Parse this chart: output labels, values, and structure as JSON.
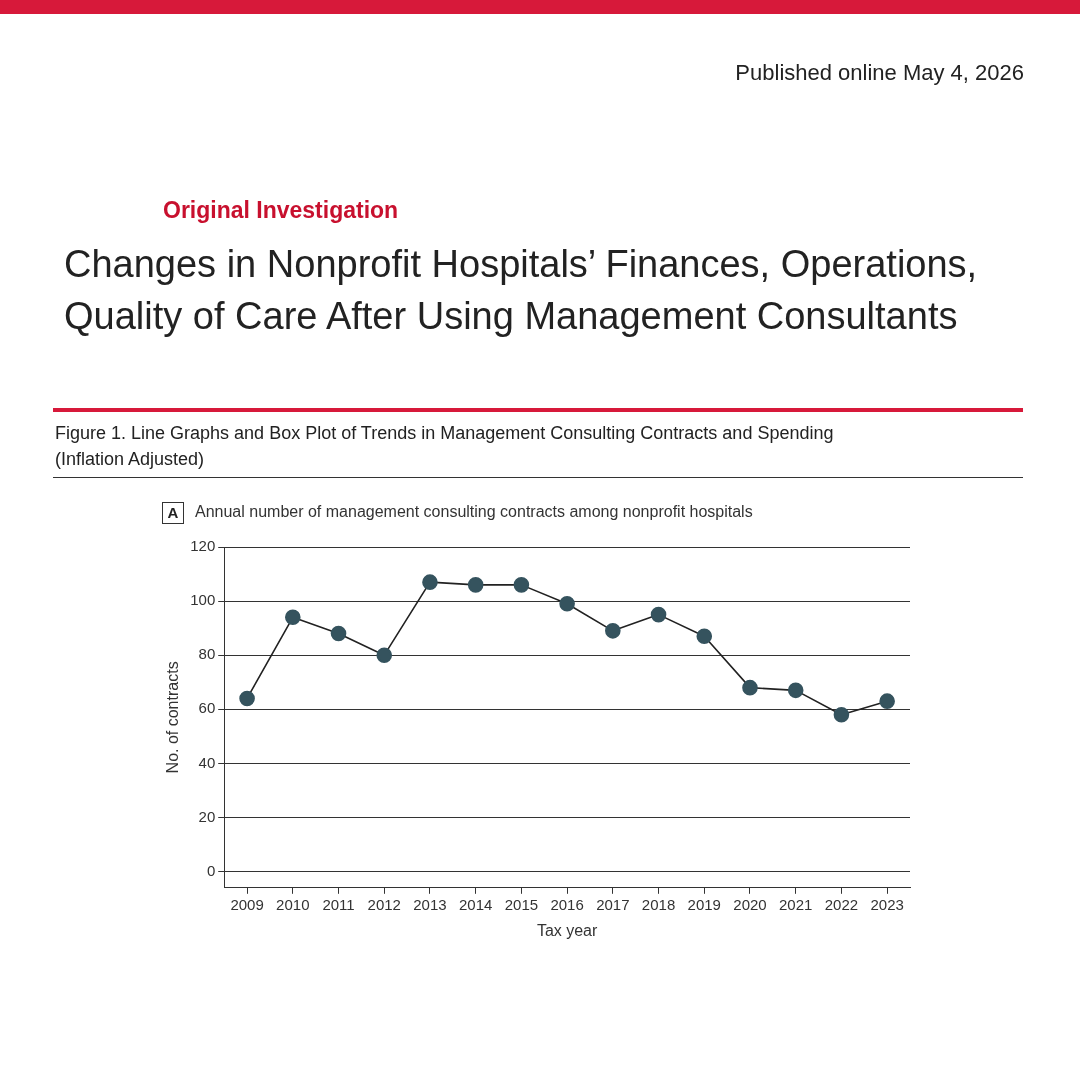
{
  "chart_data": {
    "type": "line",
    "title": "Annual number of management consulting contracts among nonprofit hospitals",
    "xlabel": "Tax year",
    "ylabel": "No. of contracts",
    "annotations": [
      "Published online May 4, 2026",
      "Original Investigation",
      "Changes in Nonprofit Hospitals’ Finances, Operations, Quality of Care After Using Management Consultants",
      "Figure 1. Line Graphs and Box Plot of Trends in Management Consulting Contracts and Spending (Inflation Adjusted)",
      "A"
    ],
    "categories": [
      "2009",
      "2010",
      "2011",
      "2012",
      "2013",
      "2014",
      "2015",
      "2016",
      "2017",
      "2018",
      "2019",
      "2020",
      "2021",
      "2022",
      "2023"
    ],
    "series": [
      {
        "color": "#35535e",
        "values": [
          64,
          94,
          88,
          80,
          107,
          106,
          106,
          99,
          89,
          95,
          87,
          68,
          67,
          58,
          63
        ]
      }
    ],
    "ylim": [
      -6,
      120
    ],
    "yticks": [
      0,
      20,
      40,
      60,
      80,
      100,
      120
    ],
    "grid": "y",
    "legend": false,
    "marker": "circle",
    "line_style": "solid"
  }
}
